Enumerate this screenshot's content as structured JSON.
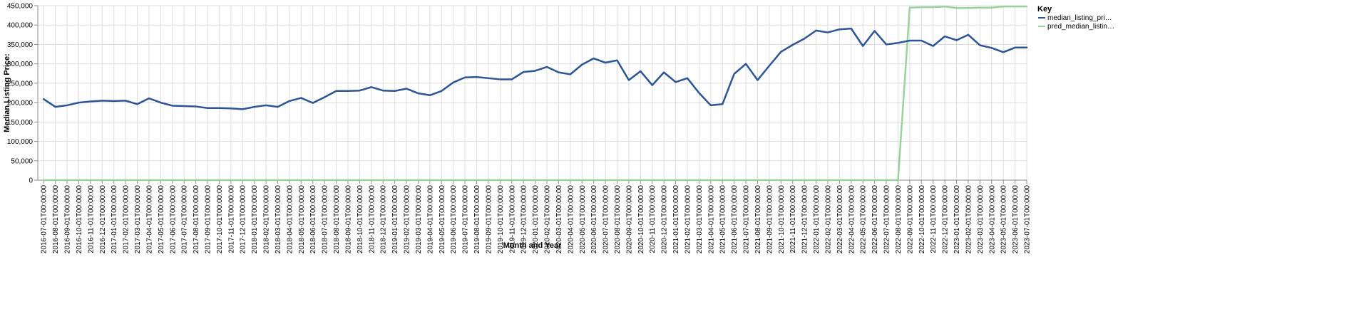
{
  "chart_data": {
    "type": "line",
    "xlabel": "Month and Year",
    "ylabel": "Median Listing Price:",
    "ylim": [
      0,
      450000
    ],
    "yticks": [
      "0",
      "50,000",
      "100,000",
      "150,000",
      "200,000",
      "250,000",
      "300,000",
      "350,000",
      "400,000",
      "450,000"
    ],
    "grid": true,
    "legend": {
      "title": "Key",
      "placement": "right",
      "items": [
        "median_listing_pri…",
        "pred_median_listin…"
      ]
    },
    "colors": {
      "median_listing_price": "#2c5596",
      "pred_median_listing_price": "#9ad39a",
      "grid": "#dddddd",
      "axis": "#888888"
    },
    "x": [
      "2016-07-01T00:00:00",
      "2016-08-01T00:00:00",
      "2016-09-01T00:00:00",
      "2016-10-01T00:00:00",
      "2016-11-01T00:00:00",
      "2016-12-01T00:00:00",
      "2017-01-01T00:00:00",
      "2017-02-01T00:00:00",
      "2017-03-01T00:00:00",
      "2017-04-01T00:00:00",
      "2017-05-01T00:00:00",
      "2017-06-01T00:00:00",
      "2017-07-01T00:00:00",
      "2017-08-01T00:00:00",
      "2017-09-01T00:00:00",
      "2017-10-01T00:00:00",
      "2017-11-01T00:00:00",
      "2017-12-01T00:00:00",
      "2018-01-01T00:00:00",
      "2018-02-01T00:00:00",
      "2018-03-01T00:00:00",
      "2018-04-01T00:00:00",
      "2018-05-01T00:00:00",
      "2018-06-01T00:00:00",
      "2018-07-01T00:00:00",
      "2018-08-01T00:00:00",
      "2018-09-01T00:00:00",
      "2018-10-01T00:00:00",
      "2018-11-01T00:00:00",
      "2018-12-01T00:00:00",
      "2019-01-01T00:00:00",
      "2019-02-01T00:00:00",
      "2019-03-01T00:00:00",
      "2019-04-01T00:00:00",
      "2019-05-01T00:00:00",
      "2019-06-01T00:00:00",
      "2019-07-01T00:00:00",
      "2019-08-01T00:00:00",
      "2019-09-01T00:00:00",
      "2019-10-01T00:00:00",
      "2019-11-01T00:00:00",
      "2019-12-01T00:00:00",
      "2020-01-01T00:00:00",
      "2020-02-01T00:00:00",
      "2020-03-01T00:00:00",
      "2020-04-01T00:00:00",
      "2020-05-01T00:00:00",
      "2020-06-01T00:00:00",
      "2020-07-01T00:00:00",
      "2020-08-01T00:00:00",
      "2020-09-01T00:00:00",
      "2020-10-01T00:00:00",
      "2020-11-01T00:00:00",
      "2020-12-01T00:00:00",
      "2021-01-01T00:00:00",
      "2021-02-01T00:00:00",
      "2021-03-01T00:00:00",
      "2021-04-01T00:00:00",
      "2021-05-01T00:00:00",
      "2021-06-01T00:00:00",
      "2021-07-01T00:00:00",
      "2021-08-01T00:00:00",
      "2021-09-01T00:00:00",
      "2021-10-01T00:00:00",
      "2021-11-01T00:00:00",
      "2021-12-01T00:00:00",
      "2022-01-01T00:00:00",
      "2022-02-01T00:00:00",
      "2022-03-01T00:00:00",
      "2022-04-01T00:00:00",
      "2022-05-01T00:00:00",
      "2022-06-01T00:00:00",
      "2022-07-01T00:00:00",
      "2022-08-01T00:00:00",
      "2022-09-01T00:00:00",
      "2022-10-01T00:00:00",
      "2022-11-01T00:00:00",
      "2022-12-01T00:00:00",
      "2023-01-01T00:00:00",
      "2023-02-01T00:00:00",
      "2023-03-01T00:00:00",
      "2023-04-01T00:00:00",
      "2023-05-01T00:00:00",
      "2023-06-01T00:00:00",
      "2023-07-01T00:00:00"
    ],
    "series": [
      {
        "name": "median_listing_pri…",
        "values": [
          209000,
          189000,
          193000,
          200000,
          203000,
          205000,
          204000,
          205000,
          196000,
          211000,
          200000,
          192000,
          191000,
          190000,
          186000,
          186000,
          185000,
          183000,
          189000,
          193000,
          189000,
          204000,
          212000,
          199000,
          214000,
          230000,
          230000,
          231000,
          240000,
          231000,
          230000,
          236000,
          224000,
          219000,
          230000,
          252000,
          265000,
          266000,
          263000,
          260000,
          260000,
          279000,
          282000,
          292000,
          278000,
          273000,
          298000,
          314000,
          303000,
          309000,
          258000,
          281000,
          245000,
          278000,
          253000,
          263000,
          225000,
          193000,
          196000,
          274000,
          300000,
          258000,
          295000,
          331000,
          349000,
          365000,
          386000,
          381000,
          389000,
          391000,
          346000,
          385000,
          350000,
          354000,
          360000,
          360000,
          346000,
          371000,
          361000,
          375000,
          348000,
          341000,
          330000,
          342000,
          342000
        ]
      },
      {
        "name": "pred_median_listin…",
        "values": [
          0,
          0,
          0,
          0,
          0,
          0,
          0,
          0,
          0,
          0,
          0,
          0,
          0,
          0,
          0,
          0,
          0,
          0,
          0,
          0,
          0,
          0,
          0,
          0,
          0,
          0,
          0,
          0,
          0,
          0,
          0,
          0,
          0,
          0,
          0,
          0,
          0,
          0,
          0,
          0,
          0,
          0,
          0,
          0,
          0,
          0,
          0,
          0,
          0,
          0,
          0,
          0,
          0,
          0,
          0,
          0,
          0,
          0,
          0,
          0,
          0,
          0,
          0,
          0,
          0,
          0,
          0,
          0,
          0,
          0,
          0,
          0,
          0,
          0,
          445000,
          446000,
          446000,
          448000,
          444000,
          444000,
          445000,
          445000,
          448000,
          448000,
          448000
        ]
      }
    ]
  }
}
